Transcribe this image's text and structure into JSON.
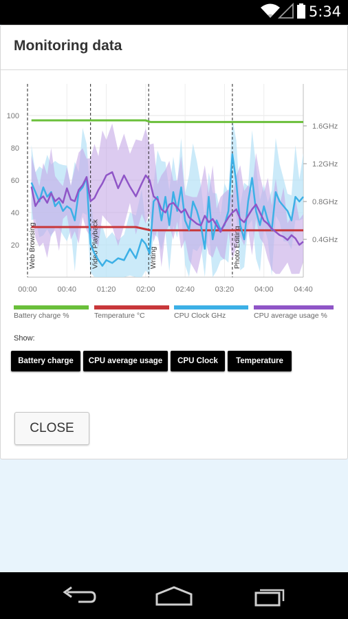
{
  "status_bar": {
    "time": "5:34",
    "icons": [
      "wifi-icon",
      "signal-icon",
      "battery-icon"
    ]
  },
  "dialog": {
    "title": "Monitoring data",
    "close_label": "CLOSE"
  },
  "show": {
    "label": "Show:",
    "buttons": [
      "Battery charge",
      "CPU average usage",
      "CPU Clock",
      "Temperature"
    ]
  },
  "legend": [
    {
      "label": "Battery charge %",
      "color": "#6abf3a"
    },
    {
      "label": "Temperature °C",
      "color": "#c8373a"
    },
    {
      "label": "CPU Clock GHz",
      "color": "#3cb0e6"
    },
    {
      "label": "CPU average usage %",
      "color": "#8f55c7"
    }
  ],
  "navigation": [
    "back-icon",
    "home-icon",
    "recent-apps-icon"
  ],
  "chart_data": {
    "type": "line",
    "x_ticks": [
      "00:00",
      "00:40",
      "01:20",
      "02:00",
      "02:40",
      "03:20",
      "04:00",
      "04:40"
    ],
    "y_left_ticks": [
      "20",
      "40",
      "60",
      "80",
      "100"
    ],
    "y_right_ticks": [
      "0.4GHz",
      "0.8GHz",
      "1.2GHz",
      "1.6GHz"
    ],
    "y_left_range": [
      0,
      100
    ],
    "y_right_range": [
      0,
      1.8
    ],
    "x_range_min": [
      0,
      280
    ],
    "phases": [
      {
        "label": "Web Browsing",
        "start_min": 0
      },
      {
        "label": "Video Playback",
        "start_min": 64
      },
      {
        "label": "Writing",
        "start_min": 123
      },
      {
        "label": "Photo Editing",
        "start_min": 208
      }
    ],
    "series": [
      {
        "name": "Battery charge %",
        "color": "#6abf3a",
        "x": [
          4,
          40,
          80,
          110,
          120,
          125,
          160,
          200,
          240,
          280
        ],
        "y": [
          97,
          97,
          97,
          97,
          97,
          96,
          96,
          96,
          96,
          96
        ]
      },
      {
        "name": "Temperature °C",
        "color": "#c8373a",
        "x": [
          4,
          40,
          64,
          80,
          110,
          125,
          160,
          200,
          240,
          280
        ],
        "y": [
          31,
          31,
          31,
          31,
          31,
          29,
          29,
          29,
          29,
          29
        ]
      },
      {
        "name": "CPU Clock GHz",
        "color": "#3cb0e6",
        "x": [
          4,
          8,
          12,
          16,
          20,
          24,
          28,
          32,
          36,
          40,
          44,
          48,
          52,
          56,
          60,
          64,
          68,
          72,
          76,
          80,
          86,
          92,
          98,
          104,
          110,
          116,
          120,
          124,
          128,
          132,
          136,
          140,
          144,
          148,
          152,
          156,
          160,
          164,
          168,
          172,
          176,
          180,
          184,
          188,
          192,
          196,
          200,
          204,
          208,
          212,
          216,
          220,
          224,
          228,
          232,
          236,
          240,
          244,
          248,
          252,
          256,
          260,
          264,
          268,
          272,
          276,
          280
        ],
        "y": [
          1.0,
          0.9,
          0.8,
          0.95,
          0.85,
          0.9,
          0.75,
          0.8,
          0.7,
          0.75,
          0.72,
          0.6,
          0.9,
          0.95,
          1.05,
          0.35,
          0.25,
          0.18,
          0.12,
          0.18,
          0.15,
          0.2,
          0.18,
          0.3,
          0.2,
          0.4,
          0.35,
          0.25,
          0.8,
          0.85,
          0.6,
          0.85,
          0.55,
          0.9,
          0.7,
          0.95,
          0.6,
          0.5,
          0.8,
          0.7,
          0.55,
          0.3,
          0.85,
          0.4,
          0.6,
          0.5,
          0.55,
          0.7,
          1.3,
          1.0,
          0.55,
          0.4,
          0.8,
          1.05,
          0.7,
          0.55,
          0.75,
          0.6,
          0.5,
          0.9,
          0.8,
          0.75,
          0.7,
          0.6,
          0.85,
          0.8,
          0.85
        ]
      },
      {
        "name": "CPU average usage %",
        "color": "#8f55c7",
        "x": [
          4,
          8,
          12,
          16,
          20,
          24,
          28,
          32,
          36,
          40,
          44,
          48,
          52,
          56,
          60,
          64,
          68,
          72,
          76,
          80,
          86,
          92,
          98,
          104,
          110,
          116,
          120,
          124,
          128,
          132,
          136,
          140,
          144,
          148,
          152,
          156,
          160,
          164,
          168,
          172,
          176,
          180,
          184,
          188,
          192,
          196,
          200,
          204,
          208,
          212,
          216,
          220,
          224,
          228,
          232,
          236,
          240,
          244,
          248,
          252,
          256,
          260,
          264,
          268,
          272,
          276,
          280
        ],
        "y": [
          56,
          44,
          48,
          50,
          46,
          52,
          47,
          49,
          46,
          55,
          48,
          47,
          54,
          57,
          62,
          47,
          49,
          54,
          58,
          63,
          65,
          55,
          63,
          56,
          50,
          58,
          63,
          60,
          50,
          48,
          42,
          40,
          45,
          46,
          43,
          40,
          42,
          37,
          35,
          33,
          32,
          38,
          34,
          36,
          32,
          28,
          33,
          37,
          40,
          42,
          36,
          34,
          38,
          42,
          45,
          40,
          35,
          33,
          30,
          28,
          26,
          25,
          23,
          26,
          24,
          20,
          22
        ]
      }
    ],
    "grid": true,
    "legend_position": "bottom"
  }
}
